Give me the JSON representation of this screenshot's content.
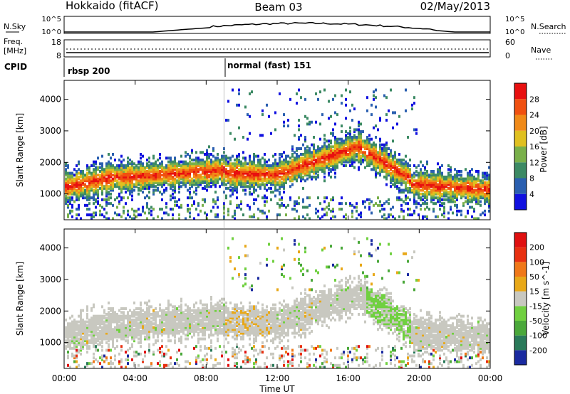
{
  "header": {
    "title": "Hokkaido (fitACF)",
    "beam": "Beam 03",
    "date": "02/May/2013"
  },
  "sky_panel": {
    "left_label": "N.Sky",
    "right_label": "N.Search",
    "left_ticks": [
      "10^5",
      "10^0"
    ],
    "right_ticks": [
      "10^5",
      "10^0"
    ]
  },
  "freq_panel": {
    "left_label_1": "Freq.",
    "left_label_2": "[MHz]",
    "right_label": "Nave",
    "left_ticks": [
      "18",
      "8"
    ],
    "right_ticks": [
      "60",
      "0"
    ]
  },
  "cpid": {
    "label": "CPID",
    "segments": [
      {
        "name": "rbsp 200",
        "start_hour": 0,
        "end_hour": 9
      },
      {
        "name": "normal (fast) 151",
        "start_hour": 9,
        "end_hour": 24
      }
    ]
  },
  "chart_data": [
    {
      "type": "heatmap",
      "quantity": "Power",
      "ylabel": "Slant Range [km]",
      "xlabel": "Time UT",
      "ylim": [
        180,
        4600
      ],
      "xlim_hours": [
        0,
        24
      ],
      "yticks": [
        "1000",
        "2000",
        "3000",
        "4000"
      ],
      "xticks": [
        "00:00",
        "04:00",
        "08:00",
        "12:00",
        "16:00",
        "20:00",
        "00:00"
      ],
      "colorbar": {
        "label": "Power [dB]",
        "ticks": [
          "4",
          "8",
          "12",
          "16",
          "20",
          "24",
          "28"
        ],
        "colors": [
          "#1010e0",
          "#2a5fb0",
          "#3c8a64",
          "#79b04a",
          "#e0c020",
          "#f08a18",
          "#f05010",
          "#e81010"
        ]
      }
    },
    {
      "type": "heatmap",
      "quantity": "Velocity",
      "ylabel": "Slant Range [km]",
      "xlabel": "Time UT",
      "ylim": [
        180,
        4600
      ],
      "xlim_hours": [
        0,
        24
      ],
      "yticks": [
        "1000",
        "2000",
        "3000",
        "4000"
      ],
      "xticks": [
        "00:00",
        "04:00",
        "08:00",
        "12:00",
        "16:00",
        "20:00",
        "00:00"
      ],
      "colorbar": {
        "label": "Velocity [m s^-1]",
        "ticks": [
          "200",
          "100",
          "50",
          "15",
          "-15",
          "-50",
          "-100",
          "-200"
        ],
        "colors": [
          "#1a2aa0",
          "#2a7a5a",
          "#4aa83a",
          "#70d040",
          "#c8c8c0",
          "#e8a818",
          "#f07818",
          "#e83010",
          "#e01010"
        ]
      }
    }
  ],
  "xaxis_label": "Time UT"
}
